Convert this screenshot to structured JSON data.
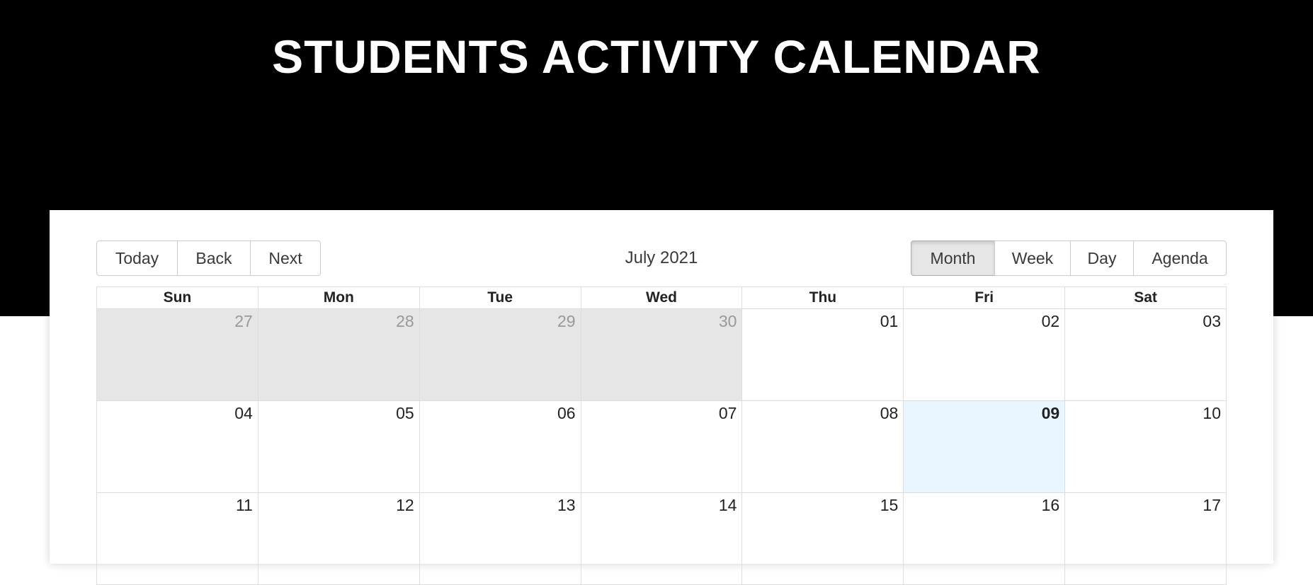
{
  "header": {
    "title": "STUDENTS ACTIVITY CALENDAR"
  },
  "toolbar": {
    "nav_buttons": [
      "Today",
      "Back",
      "Next"
    ],
    "label": "July 2021",
    "view_buttons": [
      "Month",
      "Week",
      "Day",
      "Agenda"
    ],
    "active_view": "Month"
  },
  "calendar": {
    "weekdays": [
      "Sun",
      "Mon",
      "Tue",
      "Wed",
      "Thu",
      "Fri",
      "Sat"
    ],
    "weeks": [
      [
        {
          "day": "27",
          "off": true
        },
        {
          "day": "28",
          "off": true
        },
        {
          "day": "29",
          "off": true
        },
        {
          "day": "30",
          "off": true
        },
        {
          "day": "01",
          "off": false
        },
        {
          "day": "02",
          "off": false
        },
        {
          "day": "03",
          "off": false
        }
      ],
      [
        {
          "day": "04",
          "off": false
        },
        {
          "day": "05",
          "off": false
        },
        {
          "day": "06",
          "off": false
        },
        {
          "day": "07",
          "off": false
        },
        {
          "day": "08",
          "off": false
        },
        {
          "day": "09",
          "off": false,
          "today": true
        },
        {
          "day": "10",
          "off": false
        }
      ],
      [
        {
          "day": "11",
          "off": false
        },
        {
          "day": "12",
          "off": false
        },
        {
          "day": "13",
          "off": false
        },
        {
          "day": "14",
          "off": false
        },
        {
          "day": "15",
          "off": false
        },
        {
          "day": "16",
          "off": false
        },
        {
          "day": "17",
          "off": false
        }
      ]
    ]
  },
  "colors": {
    "hero_bg": "#000000",
    "off_range_bg": "#e6e6e6",
    "today_bg": "#eaf6ff",
    "active_button_bg": "#e6e6e6"
  }
}
